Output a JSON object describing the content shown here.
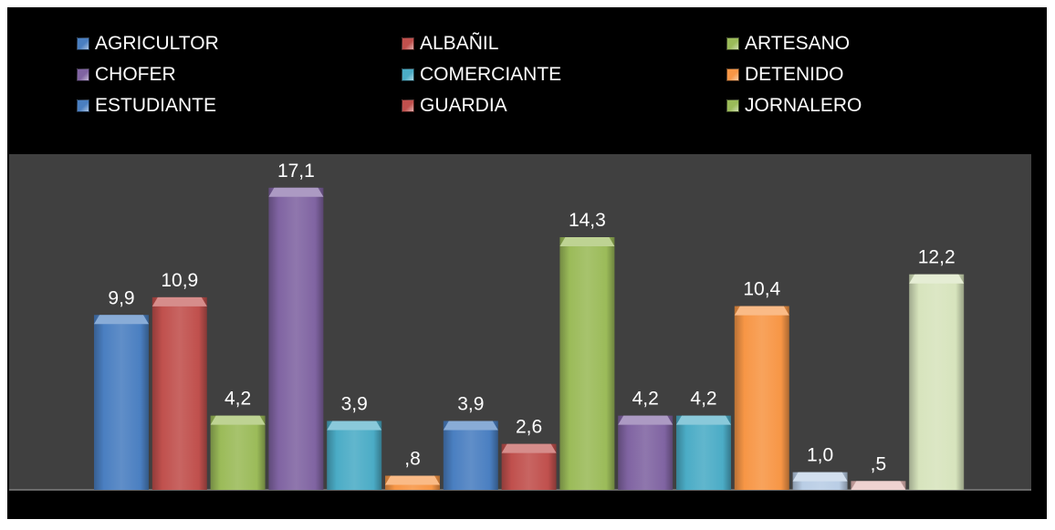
{
  "chart_data": {
    "type": "bar",
    "title": "",
    "xlabel": "",
    "ylabel": "",
    "ylim": [
      0,
      19
    ],
    "grid": false,
    "legend_position": "top",
    "legend": [
      {
        "name": "AGRICULTOR",
        "color": "#4a7fc1"
      },
      {
        "name": "ALBAÑIL",
        "color": "#c0504d"
      },
      {
        "name": "ARTESANO",
        "color": "#9bbb59"
      },
      {
        "name": "CHOFER",
        "color": "#8064a2"
      },
      {
        "name": "COMERCIANTE",
        "color": "#4bacc6"
      },
      {
        "name": "DETENIDO",
        "color": "#f79646"
      },
      {
        "name": "ESTUDIANTE",
        "color": "#4a7fc1"
      },
      {
        "name": "GUARDIA",
        "color": "#c0504d"
      },
      {
        "name": "JORNALERO",
        "color": "#9bbb59"
      }
    ],
    "bars": [
      {
        "value": 9.9,
        "label": "9,9",
        "color": "#4a7fc1"
      },
      {
        "value": 10.9,
        "label": "10,9",
        "color": "#c0504d"
      },
      {
        "value": 4.2,
        "label": "4,2",
        "color": "#9bbb59"
      },
      {
        "value": 17.1,
        "label": "17,1",
        "color": "#8064a2"
      },
      {
        "value": 3.9,
        "label": "3,9",
        "color": "#4bacc6"
      },
      {
        "value": 0.8,
        "label": ",8",
        "color": "#f79646"
      },
      {
        "value": 3.9,
        "label": "3,9",
        "color": "#4a7fc1"
      },
      {
        "value": 2.6,
        "label": "2,6",
        "color": "#c0504d"
      },
      {
        "value": 14.3,
        "label": "14,3",
        "color": "#9bbb59"
      },
      {
        "value": 4.2,
        "label": "4,2",
        "color": "#8064a2"
      },
      {
        "value": 4.2,
        "label": "4,2",
        "color": "#4bacc6"
      },
      {
        "value": 10.4,
        "label": "10,4",
        "color": "#f79646"
      },
      {
        "value": 1.0,
        "label": "1,0",
        "color": "#b9cde5"
      },
      {
        "value": 0.5,
        "label": ",5",
        "color": "#e6b9b8"
      },
      {
        "value": 12.2,
        "label": "12,2",
        "color": "#d7e4bd"
      }
    ]
  },
  "colors": {
    "background": "#000000",
    "plot_area": "#404040",
    "axis_line": "#808080",
    "text": "#ffffff"
  }
}
